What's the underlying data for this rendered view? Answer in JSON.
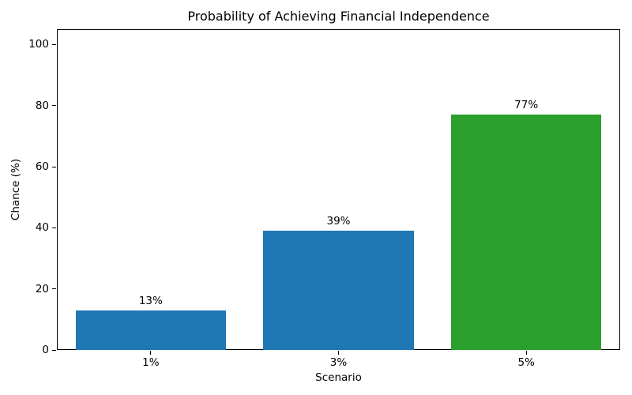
{
  "chart_data": {
    "type": "bar",
    "title": "Probability of Achieving Financial Independence",
    "xlabel": "Scenario",
    "ylabel": "Chance (%)",
    "categories": [
      "1%",
      "3%",
      "5%"
    ],
    "values": [
      13,
      39,
      77
    ],
    "bar_labels": [
      "13%",
      "39%",
      "77%"
    ],
    "bar_colors": [
      "#1f77b4",
      "#1f77b4",
      "#2ca02c"
    ],
    "yticks": [
      0,
      20,
      40,
      60,
      80,
      100
    ],
    "ylim": [
      0,
      105
    ],
    "bar_width_fraction": 0.8,
    "grid": false,
    "legend": false,
    "frame_color": "#000000",
    "text_color": "#000000",
    "background_color": "#ffffff"
  }
}
